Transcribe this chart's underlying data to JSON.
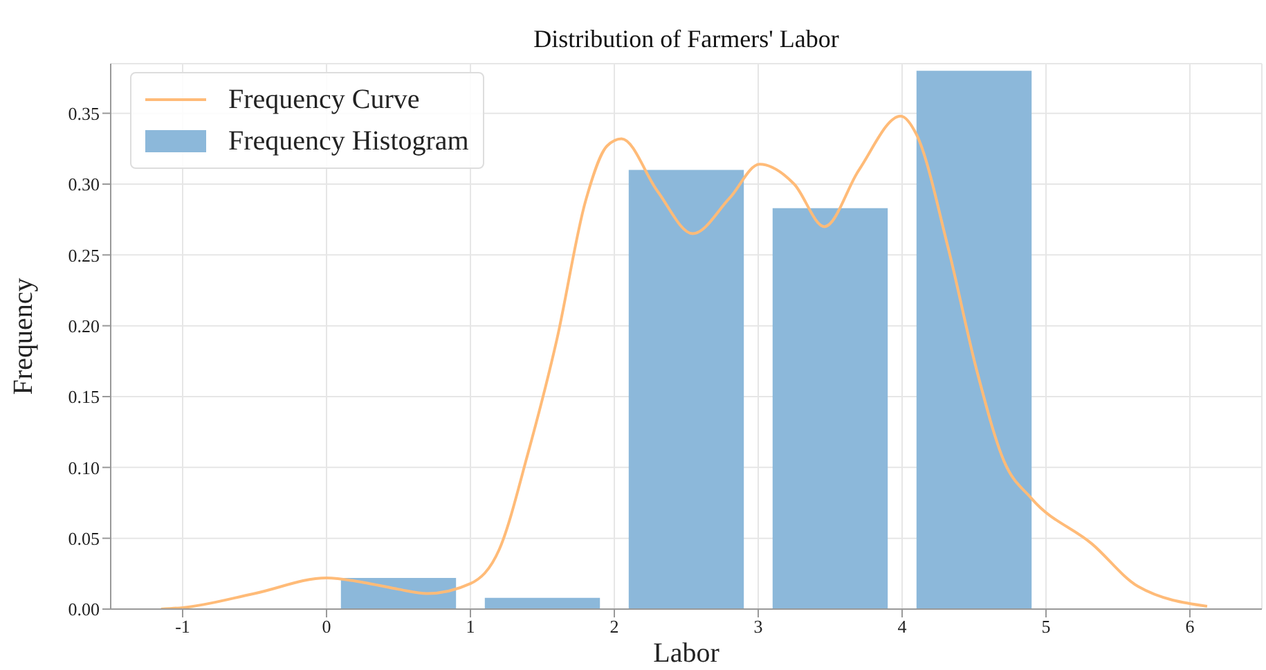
{
  "chart_data": {
    "type": "histogram",
    "title": "Distribution of Farmers' Labor",
    "xlabel": "Labor",
    "ylabel": "Frequency",
    "bins": [
      0,
      1,
      2,
      3,
      4,
      5
    ],
    "series": [
      {
        "name": "Frequency Curve",
        "type": "line",
        "color": "#ffbb78",
        "x": [
          -1.15,
          -1,
          -0.5,
          0,
          0.3,
          0.5,
          0.7,
          1,
          1.2,
          1.4,
          1.6,
          1.8,
          1.95,
          2.05,
          2.3,
          2.545,
          2.8,
          3.01,
          3.25,
          3.46,
          3.7,
          3.99,
          4.1,
          4.32,
          4.52,
          4.71,
          4.9,
          5.32,
          5.64,
          6.12
        ],
        "values": [
          0,
          0.001,
          0.011,
          0.022,
          0.018,
          0.014,
          0.011,
          0.018,
          0.042,
          0.11,
          0.19,
          0.288,
          0.327,
          0.332,
          0.295,
          0.265,
          0.29,
          0.314,
          0.3,
          0.27,
          0.31,
          0.348,
          0.335,
          0.255,
          0.168,
          0.104,
          0.078,
          0.046,
          0.016,
          0.002
        ]
      },
      {
        "name": "Frequency Histogram",
        "color": "#8cb8da",
        "values": [
          0.022,
          0.008,
          0.31,
          0.283,
          0.38
        ]
      }
    ],
    "xlim": [
      -1.5,
      6.5
    ],
    "xticks": [
      -1,
      0,
      1,
      2,
      3,
      4,
      5,
      6
    ],
    "ylim": [
      0,
      0.385
    ],
    "yticks": [
      {
        "value": 0,
        "label": "0.00"
      },
      {
        "value": 0.05,
        "label": "0.05"
      },
      {
        "value": 0.1,
        "label": "0.10"
      },
      {
        "value": 0.15,
        "label": "0.15"
      },
      {
        "value": 0.2,
        "label": "0.20"
      },
      {
        "value": 0.25,
        "label": "0.25"
      },
      {
        "value": 0.3,
        "label": "0.30"
      },
      {
        "value": 0.35,
        "label": "0.35"
      }
    ],
    "grid": true,
    "legend": "top left"
  }
}
